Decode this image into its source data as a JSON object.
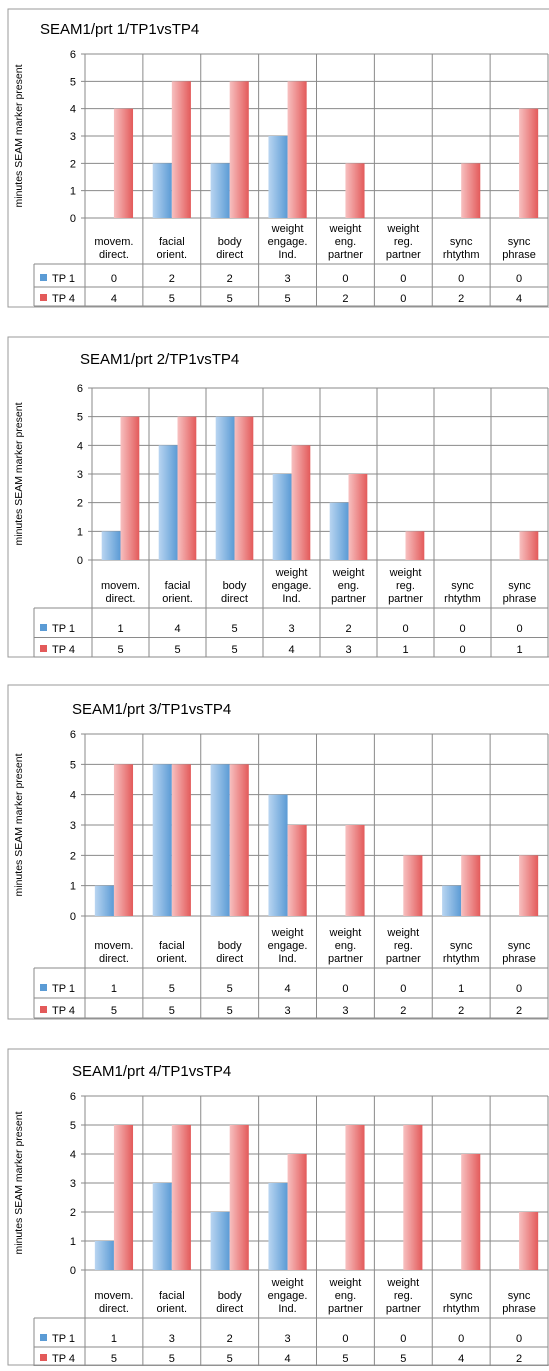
{
  "colors": {
    "tp1": "#5b9bd5",
    "tp1_light": "#b9d5f1",
    "tp4": "#e35a5a",
    "tp4_light": "#f7c0c0",
    "grid": "#8a8a8a",
    "frame": "#9a9a9a",
    "text": "#000000"
  },
  "chart_data": [
    {
      "type": "bar",
      "title": "SEAM1/prt 1/TP1vsTP4",
      "ylabel": "minutes SEAM marker present",
      "ylim": [
        0,
        6
      ],
      "yticks": [
        0,
        1,
        2,
        3,
        4,
        5,
        6
      ],
      "categories": [
        [
          "movem.",
          "direct."
        ],
        [
          "facial",
          "orient."
        ],
        [
          "body",
          "direct"
        ],
        [
          "weight",
          "engage.",
          "Ind."
        ],
        [
          "weight",
          "eng.",
          "partner"
        ],
        [
          "weight",
          "reg.",
          "partner"
        ],
        [
          "sync",
          "rhtythm"
        ],
        [
          "sync",
          "phrase"
        ]
      ],
      "series": [
        {
          "name": "TP 1",
          "values": [
            0,
            2,
            2,
            3,
            0,
            0,
            0,
            0
          ]
        },
        {
          "name": "TP 4",
          "values": [
            4,
            5,
            5,
            5,
            2,
            0,
            2,
            4
          ]
        }
      ],
      "legend": "data-table"
    },
    {
      "type": "bar",
      "title": "SEAM1/prt 2/TP1vsTP4",
      "ylabel": "minutes SEAM marker present",
      "ylim": [
        0,
        6
      ],
      "yticks": [
        0,
        1,
        2,
        3,
        4,
        5,
        6
      ],
      "categories": [
        [
          "movem.",
          "direct."
        ],
        [
          "facial",
          "orient."
        ],
        [
          "body",
          "direct"
        ],
        [
          "weight",
          "engage.",
          "Ind."
        ],
        [
          "weight",
          "eng.",
          "partner"
        ],
        [
          "weight",
          "reg.",
          "partner"
        ],
        [
          "sync",
          "rhtythm"
        ],
        [
          "sync",
          "phrase"
        ]
      ],
      "series": [
        {
          "name": "TP 1",
          "values": [
            1,
            4,
            5,
            3,
            2,
            0,
            0,
            0
          ]
        },
        {
          "name": "TP 4",
          "values": [
            5,
            5,
            5,
            4,
            3,
            1,
            0,
            1
          ]
        }
      ],
      "legend": "data-table"
    },
    {
      "type": "bar",
      "title": "SEAM1/prt 3/TP1vsTP4",
      "ylabel": "minutes SEAM marker present",
      "ylim": [
        0,
        6
      ],
      "yticks": [
        0,
        1,
        2,
        3,
        4,
        5,
        6
      ],
      "categories": [
        [
          "movem.",
          "direct."
        ],
        [
          "facial",
          "orient."
        ],
        [
          "body",
          "direct"
        ],
        [
          "weight",
          "engage.",
          "Ind."
        ],
        [
          "weight",
          "eng.",
          "partner"
        ],
        [
          "weight",
          "reg.",
          "partner"
        ],
        [
          "sync",
          "rhtythm"
        ],
        [
          "sync",
          "phrase"
        ]
      ],
      "series": [
        {
          "name": "TP 1",
          "values": [
            1,
            5,
            5,
            4,
            0,
            0,
            1,
            0
          ]
        },
        {
          "name": "TP 4",
          "values": [
            5,
            5,
            5,
            3,
            3,
            2,
            2,
            2
          ]
        }
      ],
      "legend": "data-table"
    },
    {
      "type": "bar",
      "title": "SEAM1/prt 4/TP1vsTP4",
      "ylabel": "minutes SEAM marker present",
      "ylim": [
        0,
        6
      ],
      "yticks": [
        0,
        1,
        2,
        3,
        4,
        5,
        6
      ],
      "categories": [
        [
          "movem.",
          "direct."
        ],
        [
          "facial",
          "orient."
        ],
        [
          "body",
          "direct"
        ],
        [
          "weight",
          "engage.",
          "Ind."
        ],
        [
          "weight",
          "eng.",
          "partner"
        ],
        [
          "weight",
          "reg.",
          "partner"
        ],
        [
          "sync",
          "rhtythm"
        ],
        [
          "sync",
          "phrase"
        ]
      ],
      "series": [
        {
          "name": "TP 1",
          "values": [
            1,
            3,
            2,
            3,
            0,
            0,
            0,
            0
          ]
        },
        {
          "name": "TP 4",
          "values": [
            5,
            5,
            5,
            4,
            5,
            5,
            4,
            2
          ]
        }
      ],
      "legend": "data-table"
    }
  ]
}
